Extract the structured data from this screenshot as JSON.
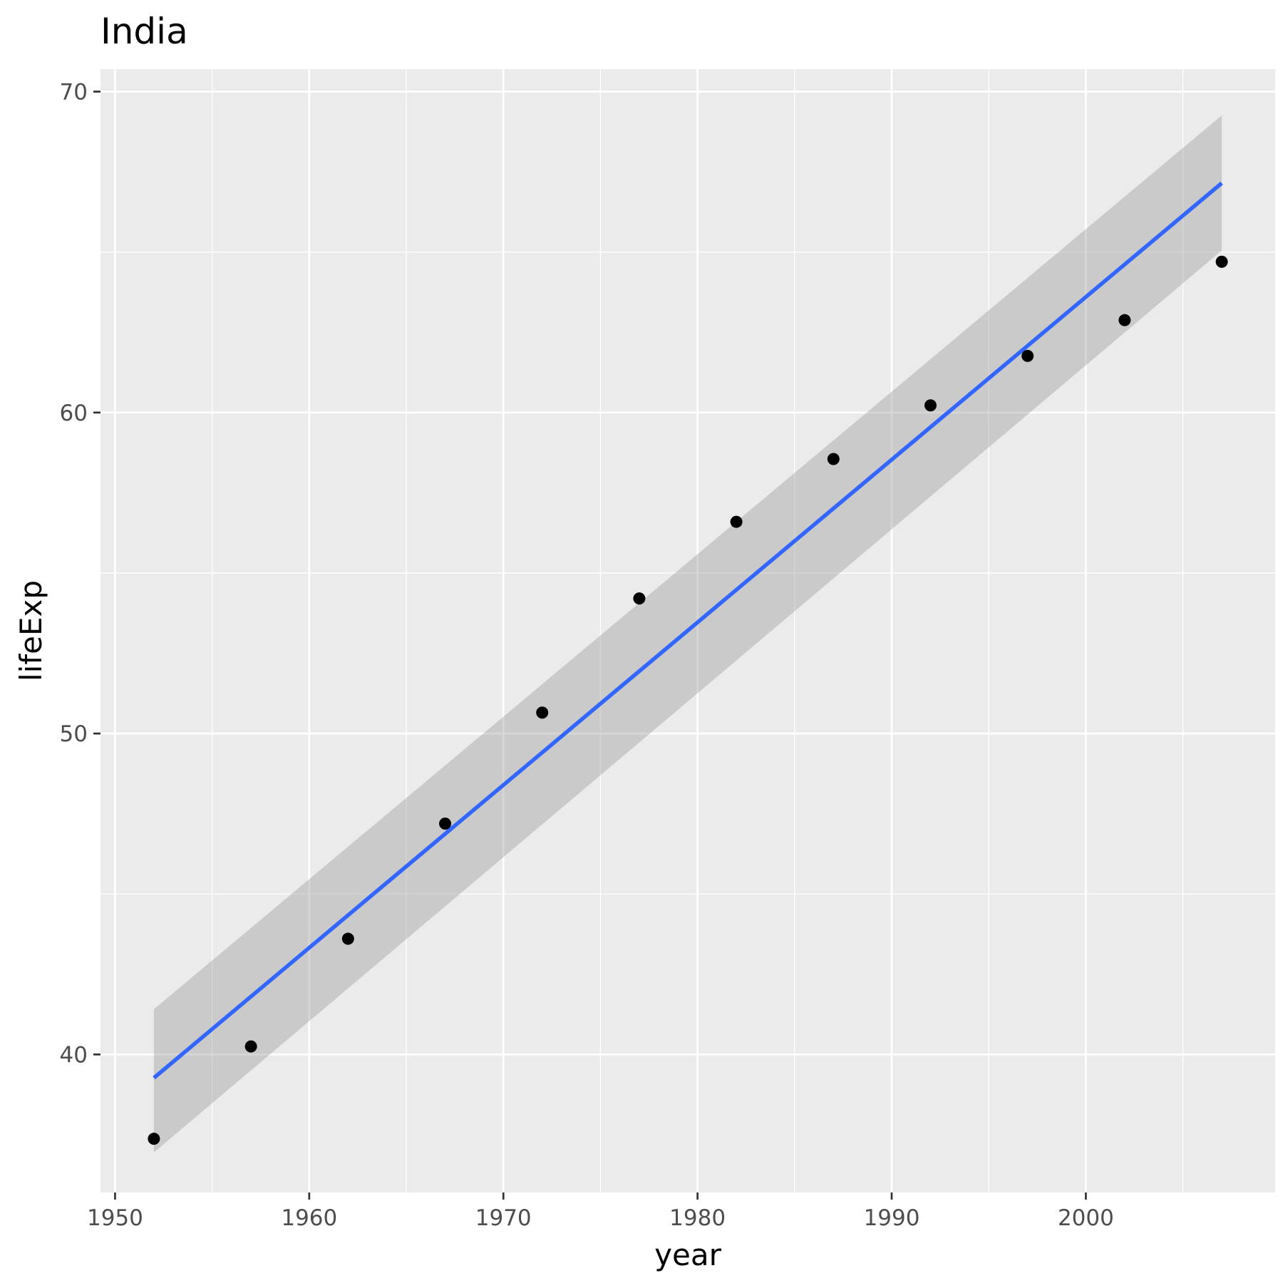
{
  "chart_data": {
    "type": "scatter",
    "title": "India",
    "xlabel": "year",
    "ylabel": "lifeExp",
    "xlim": [
      1949.25,
      2009.75
    ],
    "ylim": [
      35.7,
      70.7
    ],
    "xticks": [
      1950,
      1960,
      1970,
      1980,
      1990,
      2000
    ],
    "yticks": [
      40,
      50,
      60,
      70
    ],
    "grid": true,
    "legend": "none",
    "series": [
      {
        "x": [
          1952,
          1957,
          1962,
          1967,
          1972,
          1977,
          1982,
          1987,
          1992,
          1997,
          2002,
          2007
        ],
        "y": [
          37.373,
          40.249,
          43.605,
          47.193,
          50.651,
          54.208,
          56.596,
          58.553,
          60.223,
          61.765,
          62.879,
          64.698
        ]
      }
    ],
    "trend_line": {
      "method": "linear",
      "x": [
        1952,
        2007
      ],
      "y": [
        39.27,
        67.15
      ],
      "ci_lower": [
        36.95,
        65.05
      ],
      "ci_upper": [
        41.41,
        69.26
      ]
    },
    "colors": {
      "panel": "#ebebeb",
      "grid": "#ffffff",
      "points": "#000000",
      "trend_line": "#3366ff",
      "confidence_band": "#999999"
    }
  }
}
